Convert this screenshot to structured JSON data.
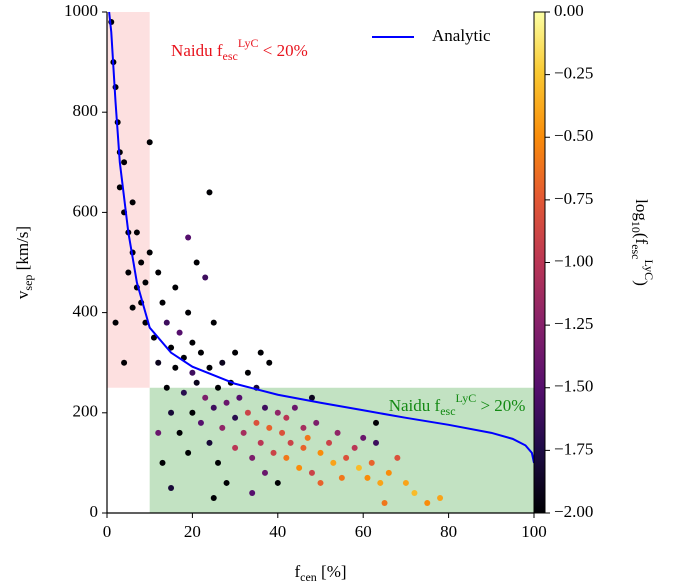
{
  "chart_data": {
    "type": "scatter",
    "xlabel": [
      {
        "text": "f"
      },
      {
        "sub": "cen"
      },
      {
        "text": " [%]"
      }
    ],
    "ylabel": [
      {
        "text": "v"
      },
      {
        "sub": "sep"
      },
      {
        "text": " [km/s]"
      }
    ],
    "xlim": [
      0,
      100
    ],
    "ylim": [
      0,
      1000
    ],
    "xticks": [
      0,
      20,
      40,
      60,
      80,
      100
    ],
    "yticks": [
      0,
      200,
      400,
      600,
      800,
      1000
    ],
    "legend": "upper right",
    "colorbar": {
      "colormap": "inferno",
      "label": [
        {
          "text": "log"
        },
        {
          "sub": "10"
        },
        {
          "text": "(f"
        },
        {
          "sub": "esc"
        },
        {
          "sup": "LyC"
        },
        {
          "text": ")"
        }
      ],
      "lim": [
        -2,
        0
      ],
      "ticks": [
        {
          "value": 0,
          "label": "0.00"
        },
        {
          "value": -0.25,
          "label": "−0.25"
        },
        {
          "value": -0.5,
          "label": "−0.50"
        },
        {
          "value": -0.75,
          "label": "−0.75"
        },
        {
          "value": -1,
          "label": "−1.00"
        },
        {
          "value": -1.25,
          "label": "−1.25"
        },
        {
          "value": -1.5,
          "label": "−1.50"
        },
        {
          "value": -1.75,
          "label": "−1.75"
        },
        {
          "value": -2,
          "label": "−2.00"
        }
      ]
    },
    "regions": [
      {
        "label": [
          {
            "text": "Naidu f"
          },
          {
            "sub": "esc"
          },
          {
            "sup": "LyC"
          },
          {
            "text": " < 20%"
          }
        ],
        "xlim": [
          0,
          10
        ],
        "ylim": [
          250,
          1000
        ],
        "color": "#fde0e0",
        "text_color": "#e8141e"
      },
      {
        "label": [
          {
            "text": "Naidu f"
          },
          {
            "sub": "esc"
          },
          {
            "sup": "LyC"
          },
          {
            "text": " > 20%"
          }
        ],
        "xlim": [
          10,
          100
        ],
        "ylim": [
          0,
          250
        ],
        "color": "#c2e2c2",
        "text_color": "#148a14"
      }
    ],
    "lines": [
      {
        "name": "Analytic",
        "color": "#0000ff",
        "x": [
          0.5,
          1,
          2,
          3,
          5,
          7,
          10,
          15,
          20,
          30,
          40,
          50,
          60,
          70,
          80,
          90,
          95,
          98,
          99.5,
          100
        ],
        "values": [
          1000,
          960,
          820,
          700,
          560,
          460,
          370,
          320,
          292,
          258,
          236,
          220,
          205,
          190,
          176,
          160,
          148,
          135,
          120,
          100
        ]
      }
    ],
    "points": {
      "x": [
        1,
        1.5,
        2,
        2.5,
        3,
        3,
        4,
        4,
        5,
        5,
        6,
        6,
        7,
        7,
        8,
        8,
        9,
        9,
        2,
        4,
        10,
        10,
        6,
        11,
        12,
        12,
        13,
        14,
        14,
        15,
        15,
        16,
        16,
        17,
        17,
        18,
        18,
        19,
        19,
        20,
        20,
        20,
        13,
        15,
        19,
        12,
        21,
        22,
        22,
        23,
        24,
        24,
        25,
        25,
        26,
        26,
        27,
        27,
        28,
        28,
        29,
        30,
        30,
        30,
        25,
        24,
        21,
        23,
        31,
        32,
        33,
        33,
        34,
        35,
        35,
        36,
        37,
        37,
        38,
        38,
        39,
        40,
        40,
        36,
        34,
        41,
        42,
        42,
        43,
        44,
        45,
        46,
        46,
        47,
        48,
        49,
        50,
        50,
        52,
        53,
        54,
        55,
        56,
        58,
        59,
        60,
        61,
        62,
        63,
        64,
        65,
        66,
        68,
        70,
        72,
        75,
        78,
        63,
        48
      ],
      "y": [
        980,
        900,
        850,
        780,
        720,
        650,
        700,
        600,
        560,
        480,
        620,
        520,
        450,
        560,
        500,
        420,
        380,
        460,
        380,
        300,
        740,
        520,
        410,
        350,
        480,
        300,
        420,
        380,
        250,
        330,
        200,
        450,
        290,
        360,
        160,
        310,
        240,
        400,
        120,
        280,
        340,
        200,
        100,
        50,
        550,
        160,
        260,
        320,
        180,
        230,
        290,
        140,
        380,
        210,
        250,
        100,
        300,
        170,
        220,
        60,
        260,
        190,
        130,
        320,
        30,
        640,
        500,
        470,
        230,
        160,
        200,
        280,
        110,
        180,
        250,
        140,
        210,
        80,
        170,
        300,
        120,
        200,
        60,
        320,
        40,
        160,
        190,
        110,
        140,
        210,
        90,
        170,
        130,
        150,
        80,
        180,
        120,
        60,
        140,
        100,
        160,
        70,
        110,
        130,
        90,
        150,
        70,
        100,
        140,
        60,
        20,
        80,
        110,
        60,
        40,
        20,
        30,
        180,
        230
      ],
      "c": [
        -2,
        -2,
        -2,
        -2,
        -2,
        -2,
        -2,
        -2,
        -2,
        -2,
        -2,
        -2,
        -2,
        -2,
        -2,
        -2,
        -2,
        -2,
        -2,
        -2,
        -2,
        -2,
        -2,
        -2,
        -2,
        -1.9,
        -2,
        -1.6,
        -2,
        -2,
        -1.8,
        -2,
        -2,
        -1.5,
        -2,
        -2,
        -1.7,
        -2,
        -2,
        -1.6,
        -2,
        -2,
        -2,
        -1.8,
        -1.5,
        -1.4,
        -1.9,
        -2,
        -1.5,
        -1.3,
        -2,
        -1.8,
        -2,
        -1.6,
        -2,
        -2,
        -1.9,
        -1.2,
        -1.4,
        -2,
        -2,
        -1.7,
        -1,
        -2,
        -2,
        -2,
        -2,
        -1.6,
        -1.5,
        -1.1,
        -0.9,
        -2,
        -1.3,
        -0.8,
        -1.8,
        -1,
        -1.6,
        -1.4,
        -0.7,
        -2,
        -0.9,
        -1.2,
        -2,
        -2,
        -1.5,
        -0.8,
        -1,
        -0.6,
        -0.9,
        -1.4,
        -0.5,
        -1.1,
        -0.7,
        -0.6,
        -0.9,
        -1.3,
        -0.5,
        -0.7,
        -0.9,
        -0.4,
        -1.2,
        -0.6,
        -0.8,
        -1,
        -0.3,
        -1.4,
        -0.5,
        -0.7,
        -1.6,
        -0.4,
        -0.6,
        -0.5,
        -0.8,
        -0.4,
        -0.3,
        -0.5,
        -0.4,
        -2,
        -1.9
      ]
    }
  }
}
